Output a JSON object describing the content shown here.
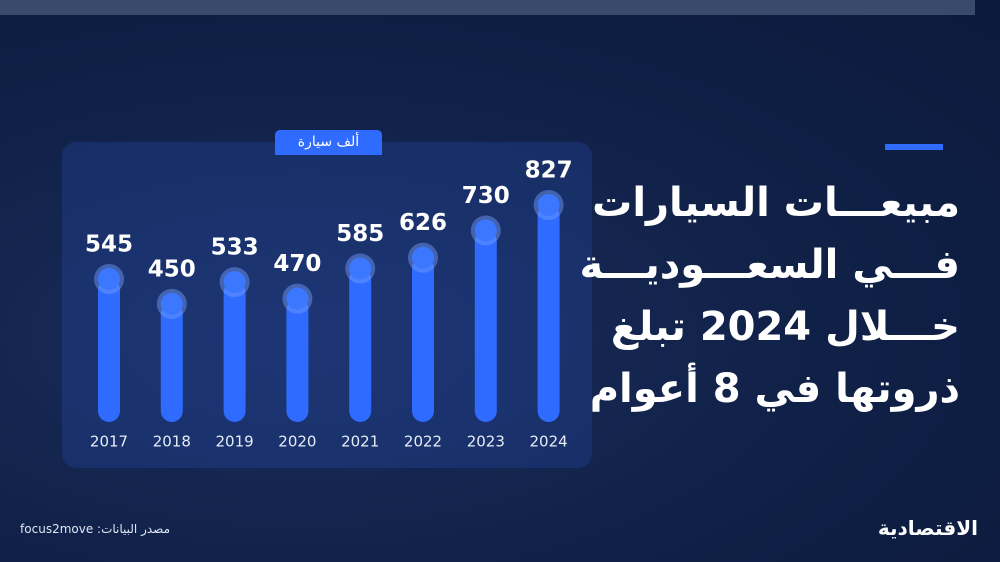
{
  "chart_data": {
    "type": "bar",
    "title_lines": [
      "مبيعـــات السيارات",
      "فـــي السعـــوديـــة",
      "خـــلال 2024 تبلغ",
      "ذروتها في 8 أعوام"
    ],
    "unit_label": "ألف سيارة",
    "categories": [
      "2017",
      "2018",
      "2019",
      "2020",
      "2021",
      "2022",
      "2023",
      "2024"
    ],
    "values": [
      545,
      450,
      533,
      470,
      585,
      626,
      730,
      827
    ],
    "color": "#2f6bff",
    "ylim": [
      0,
      846
    ],
    "source": "مصدر البيانات: focus2move",
    "logo": "الاقتصادية"
  }
}
